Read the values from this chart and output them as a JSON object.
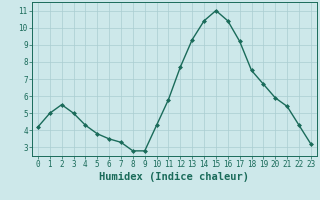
{
  "x": [
    0,
    1,
    2,
    3,
    4,
    5,
    6,
    7,
    8,
    9,
    10,
    11,
    12,
    13,
    14,
    15,
    16,
    17,
    18,
    19,
    20,
    21,
    22,
    23
  ],
  "y": [
    4.2,
    5.0,
    5.5,
    5.0,
    4.3,
    3.8,
    3.5,
    3.3,
    2.8,
    2.8,
    4.3,
    5.8,
    7.7,
    9.3,
    10.4,
    11.0,
    10.4,
    9.2,
    7.5,
    6.7,
    5.9,
    5.4,
    4.3,
    3.2
  ],
  "line_color": "#1a6b5a",
  "marker": "D",
  "marker_size": 2.0,
  "bg_color": "#cde8ea",
  "grid_color": "#aacdd1",
  "xlabel": "Humidex (Indice chaleur)",
  "ylim": [
    2.5,
    11.5
  ],
  "xlim": [
    -0.5,
    23.5
  ],
  "yticks": [
    3,
    4,
    5,
    6,
    7,
    8,
    9,
    10,
    11
  ],
  "xticks": [
    0,
    1,
    2,
    3,
    4,
    5,
    6,
    7,
    8,
    9,
    10,
    11,
    12,
    13,
    14,
    15,
    16,
    17,
    18,
    19,
    20,
    21,
    22,
    23
  ],
  "tick_labelsize": 5.5,
  "xlabel_fontsize": 7.5,
  "xlabel_color": "#1a6b5a",
  "spine_color": "#1a6b5a",
  "linewidth": 1.0
}
